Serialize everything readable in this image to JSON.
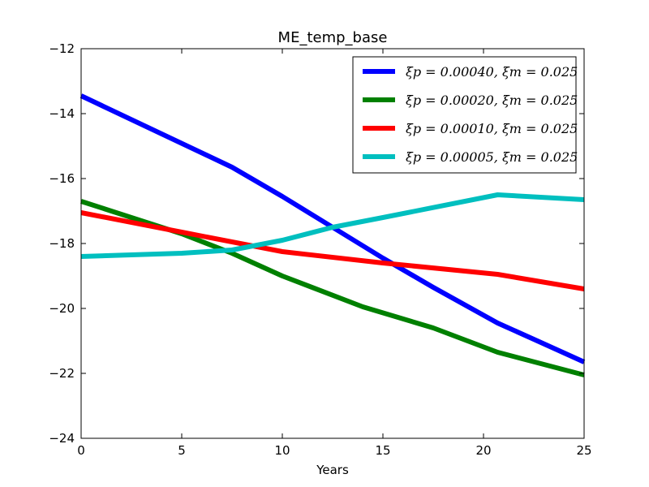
{
  "chart_data": {
    "type": "line",
    "title": "ME_temp_base",
    "xlabel": "Years",
    "ylabel": "",
    "xlim": [
      0,
      25
    ],
    "ylim": [
      -24,
      -12
    ],
    "x_ticks": [
      0,
      5,
      10,
      15,
      20,
      25
    ],
    "y_ticks": [
      -24,
      -22,
      -20,
      -18,
      -16,
      -14,
      -12
    ],
    "x_tick_labels": [
      "0",
      "5",
      "10",
      "15",
      "20",
      "25"
    ],
    "y_tick_labels": [
      "−24",
      "−22",
      "−20",
      "−18",
      "−16",
      "−14",
      "−12"
    ],
    "grid": false,
    "legend_position": "top-right",
    "series": [
      {
        "name": "ξp = 0.00040, ξm = 0.025",
        "color": "#0000ff",
        "x": [
          0,
          7.5,
          10,
          12.5,
          15,
          17.5,
          20.7,
          22.5,
          25
        ],
        "y": [
          -13.45,
          -15.65,
          -16.55,
          -17.5,
          -18.45,
          -19.35,
          -20.45,
          -20.95,
          -21.65
        ]
      },
      {
        "name": "ξp = 0.00020, ξm = 0.025",
        "color": "#008000",
        "x": [
          0,
          5,
          7.5,
          10,
          14,
          17.5,
          20.7,
          25
        ],
        "y": [
          -16.7,
          -17.7,
          -18.3,
          -19.0,
          -19.95,
          -20.6,
          -21.35,
          -22.05
        ]
      },
      {
        "name": "ξp = 0.00010, ξm = 0.025",
        "color": "#ff0000",
        "x": [
          0,
          5,
          10,
          15,
          20.7,
          25
        ],
        "y": [
          -17.05,
          -17.65,
          -18.25,
          -18.6,
          -18.95,
          -19.4
        ]
      },
      {
        "name": "ξp = 0.00005, ξm = 0.025",
        "color": "#00bfbf",
        "x": [
          0,
          5,
          7.5,
          10,
          12.5,
          15,
          20.7,
          25
        ],
        "y": [
          -18.4,
          -18.3,
          -18.2,
          -17.9,
          -17.5,
          -17.2,
          -16.5,
          -16.65
        ]
      }
    ]
  }
}
